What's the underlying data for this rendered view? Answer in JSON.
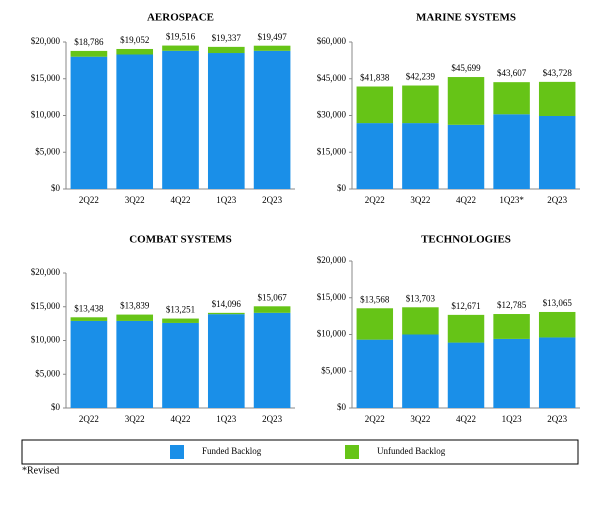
{
  "chart_data": [
    {
      "type": "bar",
      "stacked": true,
      "title": "AEROSPACE",
      "categories": [
        "2Q22",
        "3Q22",
        "4Q22",
        "1Q23",
        "2Q23"
      ],
      "series": [
        {
          "name": "Funded Backlog",
          "color": "#1a8fe8",
          "values": [
            18000,
            18300,
            18800,
            18500,
            18800
          ]
        },
        {
          "name": "Unfunded Backlog",
          "color": "#66c417",
          "values": [
            786,
            752,
            716,
            837,
            697
          ]
        }
      ],
      "totals": [
        18786,
        19052,
        19516,
        19337,
        19497
      ],
      "total_labels": [
        "$18,786",
        "$19,052",
        "$19,516",
        "$19,337",
        "$19,497"
      ],
      "ylim": [
        0,
        20000
      ],
      "yticks": [
        {
          "value": 0,
          "label": "$0"
        },
        {
          "value": 5000,
          "label": "$5,000"
        },
        {
          "value": 10000,
          "label": "$10,000"
        },
        {
          "value": 15000,
          "label": "$15,000"
        },
        {
          "value": 20000,
          "label": "$20,000"
        }
      ]
    },
    {
      "type": "bar",
      "stacked": true,
      "title": "MARINE SYSTEMS",
      "categories": [
        "2Q22",
        "3Q22",
        "4Q22",
        "1Q23*",
        "2Q23"
      ],
      "series": [
        {
          "color": "#1a8fe8",
          "values": [
            26900,
            26900,
            26200,
            30500,
            29800
          ]
        },
        {
          "color": "#66c417",
          "values": [
            14938,
            15339,
            19499,
            13107,
            13928
          ]
        }
      ],
      "totals": [
        41838,
        42239,
        45699,
        43607,
        43728
      ],
      "total_labels": [
        "$41,838",
        "$42,239",
        "$45,699",
        "$43,607",
        "$43,728"
      ],
      "ylim": [
        0,
        60000
      ],
      "yticks": [
        {
          "value": 0,
          "label": "$0"
        },
        {
          "value": 15000,
          "label": "$15,000"
        },
        {
          "value": 30000,
          "label": "$30,000"
        },
        {
          "value": 45000,
          "label": "$45,000"
        },
        {
          "value": 60000,
          "label": "$60,000"
        }
      ]
    },
    {
      "type": "bar",
      "stacked": true,
      "title": "COMBAT SYSTEMS",
      "categories": [
        "2Q22",
        "3Q22",
        "4Q22",
        "1Q23",
        "2Q23"
      ],
      "series": [
        {
          "color": "#1a8fe8",
          "values": [
            12900,
            12900,
            12600,
            13900,
            14100
          ]
        },
        {
          "color": "#66c417",
          "values": [
            538,
            939,
            651,
            196,
            967
          ]
        }
      ],
      "totals": [
        13438,
        13839,
        13251,
        14096,
        15067
      ],
      "total_labels": [
        "$13,438",
        "$13,839",
        "$13,251",
        "$14,096",
        "$15,067"
      ],
      "ylim": [
        0,
        20000
      ],
      "yticks": [
        {
          "value": 0,
          "label": "$0"
        },
        {
          "value": 5000,
          "label": "$5,000"
        },
        {
          "value": 10000,
          "label": "$10,000"
        },
        {
          "value": 15000,
          "label": "$15,000"
        },
        {
          "value": 20000,
          "label": "$20,000"
        }
      ]
    },
    {
      "type": "bar",
      "stacked": true,
      "title": "TECHNOLOGIES",
      "categories": [
        "2Q22",
        "3Q22",
        "4Q22",
        "1Q23",
        "2Q23"
      ],
      "series": [
        {
          "color": "#1a8fe8",
          "values": [
            9300,
            10000,
            8900,
            9400,
            9600
          ]
        },
        {
          "color": "#66c417",
          "values": [
            4268,
            3703,
            3771,
            3385,
            3465
          ]
        }
      ],
      "totals": [
        13568,
        13703,
        12671,
        12785,
        13065
      ],
      "total_labels": [
        "$13,568",
        "$13,703",
        "$12,671",
        "$12,785",
        "$13,065"
      ],
      "ylim": [
        0,
        20000
      ],
      "yticks": [
        {
          "value": 0,
          "label": "$0"
        },
        {
          "value": 5000,
          "label": "$5,000"
        },
        {
          "value": 10000,
          "label": "$10,000"
        },
        {
          "value": 15000,
          "label": "$15,000"
        },
        {
          "value": 20000,
          "label": "$20,000"
        }
      ]
    }
  ],
  "footnote": "*Revised"
}
